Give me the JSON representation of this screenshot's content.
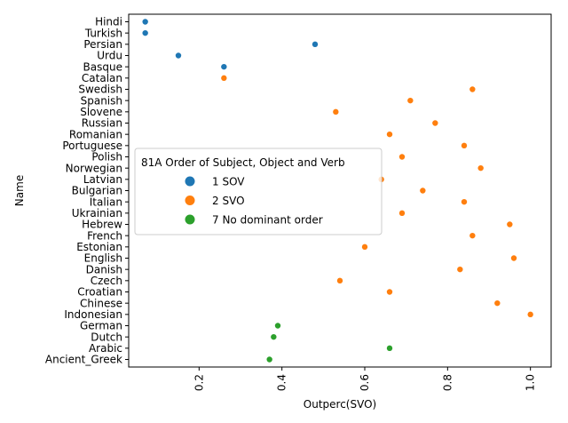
{
  "chart_data": {
    "type": "scatter",
    "xlabel": "Outperc(SVO)",
    "ylabel": "Name",
    "xlim": [
      0.03,
      1.05
    ],
    "xticks": [
      "0.2",
      "0.4",
      "0.6",
      "0.8",
      "1.0"
    ],
    "xtick_values": [
      0.2,
      0.4,
      0.6,
      0.8,
      1.0
    ],
    "grid": false,
    "legend": {
      "title": "81A Order of Subject, Object and Verb",
      "placement": "center-left"
    },
    "categories": [
      "Hindi",
      "Turkish",
      "Persian",
      "Urdu",
      "Basque",
      "Catalan",
      "Swedish",
      "Spanish",
      "Slovene",
      "Russian",
      "Romanian",
      "Portuguese",
      "Polish",
      "Norwegian",
      "Latvian",
      "Bulgarian",
      "Italian",
      "Ukrainian",
      "Hebrew",
      "French",
      "Estonian",
      "English",
      "Danish",
      "Czech",
      "Croatian",
      "Chinese",
      "Indonesian",
      "German",
      "Dutch",
      "Arabic",
      "Ancient_Greek"
    ],
    "series": [
      {
        "name": "1 SOV",
        "color": "#1f77b4",
        "points": [
          {
            "y": "Hindi",
            "x": 0.07
          },
          {
            "y": "Turkish",
            "x": 0.07
          },
          {
            "y": "Persian",
            "x": 0.48
          },
          {
            "y": "Urdu",
            "x": 0.15
          },
          {
            "y": "Basque",
            "x": 0.26
          }
        ]
      },
      {
        "name": "2 SVO",
        "color": "#ff7f0e",
        "points": [
          {
            "y": "Catalan",
            "x": 0.26
          },
          {
            "y": "Swedish",
            "x": 0.86
          },
          {
            "y": "Spanish",
            "x": 0.71
          },
          {
            "y": "Slovene",
            "x": 0.53
          },
          {
            "y": "Russian",
            "x": 0.77
          },
          {
            "y": "Romanian",
            "x": 0.66
          },
          {
            "y": "Portuguese",
            "x": 0.84
          },
          {
            "y": "Polish",
            "x": 0.69
          },
          {
            "y": "Norwegian",
            "x": 0.88
          },
          {
            "y": "Latvian",
            "x": 0.64
          },
          {
            "y": "Bulgarian",
            "x": 0.74
          },
          {
            "y": "Italian",
            "x": 0.84
          },
          {
            "y": "Ukrainian",
            "x": 0.69
          },
          {
            "y": "Hebrew",
            "x": 0.95
          },
          {
            "y": "French",
            "x": 0.86
          },
          {
            "y": "Estonian",
            "x": 0.6
          },
          {
            "y": "English",
            "x": 0.96
          },
          {
            "y": "Danish",
            "x": 0.83
          },
          {
            "y": "Czech",
            "x": 0.54
          },
          {
            "y": "Croatian",
            "x": 0.66
          },
          {
            "y": "Chinese",
            "x": 0.92
          },
          {
            "y": "Indonesian",
            "x": 1.0
          }
        ]
      },
      {
        "name": "7 No dominant order",
        "color": "#2ca02c",
        "points": [
          {
            "y": "German",
            "x": 0.39
          },
          {
            "y": "Dutch",
            "x": 0.38
          },
          {
            "y": "Arabic",
            "x": 0.66
          },
          {
            "y": "Ancient_Greek",
            "x": 0.37
          }
        ]
      }
    ]
  }
}
